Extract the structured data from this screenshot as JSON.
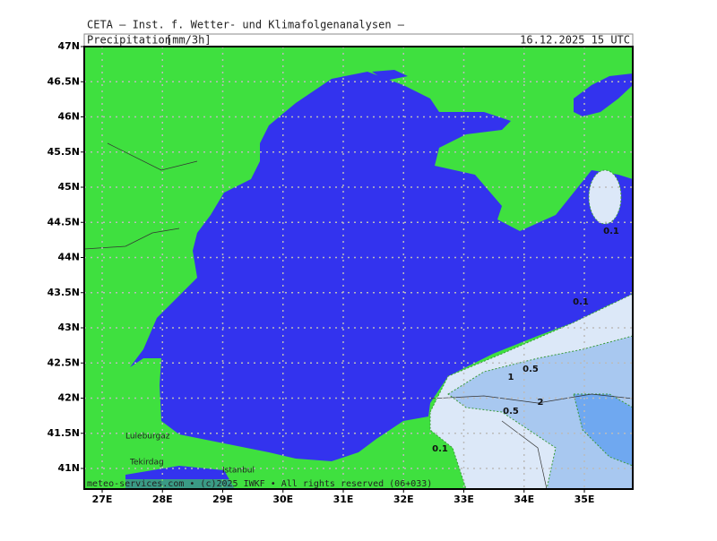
{
  "map": {
    "header": "CETA — Inst. f. Wetter- und Klimafolgenanalysen —",
    "title": "Precipitation",
    "unit": "[mm/3h]",
    "date": "16.12.2025 15 UTC",
    "lat_ticks": [
      {
        "value": 47,
        "label": "47N"
      },
      {
        "value": 46.5,
        "label": "46.5N"
      },
      {
        "value": 46,
        "label": "46N"
      },
      {
        "value": 45.5,
        "label": "45.5N"
      },
      {
        "value": 45,
        "label": "45N"
      },
      {
        "value": 44.5,
        "label": "44.5N"
      },
      {
        "value": 44,
        "label": "44N"
      },
      {
        "value": 43.5,
        "label": "43.5N"
      },
      {
        "value": 43,
        "label": "43N"
      },
      {
        "value": 42.5,
        "label": "42.5N"
      },
      {
        "value": 42,
        "label": "42N"
      },
      {
        "value": 41.5,
        "label": "41.5N"
      },
      {
        "value": 41,
        "label": "41N"
      }
    ],
    "lon_ticks": [
      {
        "value": 27,
        "label": "27E"
      },
      {
        "value": 28,
        "label": "28E"
      },
      {
        "value": 29,
        "label": "29E"
      },
      {
        "value": 30,
        "label": "30E"
      },
      {
        "value": 31,
        "label": "31E"
      },
      {
        "value": 32,
        "label": "32E"
      },
      {
        "value": 33,
        "label": "33E"
      },
      {
        "value": 34,
        "label": "34E"
      },
      {
        "value": 35,
        "label": "35E"
      }
    ],
    "contour_labels": [
      0.1,
      0.1,
      0.5,
      1,
      2,
      0.5,
      0.1
    ],
    "places": [
      "Luleburgaz",
      "Tekirdag",
      "Istanbul"
    ],
    "footer": "meteo-services.com • (c)2025 IWKF • All rights reserved (06+033)"
  }
}
